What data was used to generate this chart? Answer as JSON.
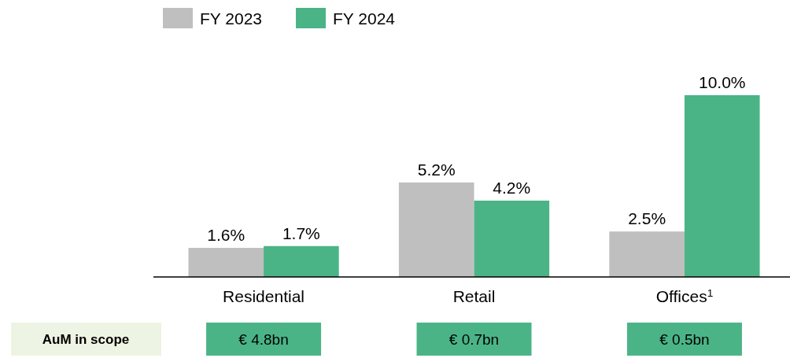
{
  "chart_data": {
    "type": "bar",
    "categories": [
      "Residential",
      "Retail",
      "Offices$^{1}$"
    ],
    "series": [
      {
        "name": "FY 2023",
        "color": "#bfbfbf",
        "values": [
          1.6,
          5.2,
          2.5
        ],
        "value_labels": [
          "1.6%",
          "5.2%",
          "2.5%"
        ]
      },
      {
        "name": "FY 2024",
        "color": "#4bb487",
        "values": [
          1.7,
          4.2,
          10.0
        ],
        "value_labels": [
          "1.7%",
          "4.2%",
          "10.0%"
        ]
      }
    ],
    "legend": "top",
    "annotations": [
      "AuM in scope",
      "€ 4.8bn",
      "€ 0.7bn",
      "€ 0.5bn"
    ]
  }
}
